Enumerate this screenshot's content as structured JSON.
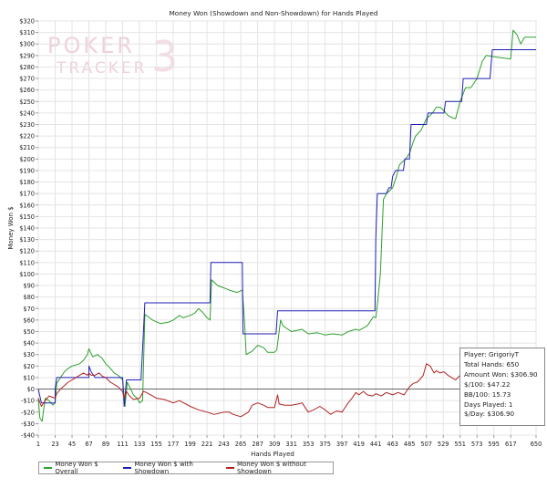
{
  "chart_data": {
    "type": "line",
    "title": "Money Won (Showdown and Non-Showdown) for Hands Played",
    "xlabel": "Hands Played",
    "ylabel": "Money Won $",
    "xlim": [
      1,
      650
    ],
    "ylim": [
      -40,
      320
    ],
    "x_ticks": [
      1,
      23,
      45,
      67,
      89,
      111,
      133,
      155,
      177,
      199,
      221,
      243,
      265,
      287,
      309,
      331,
      353,
      375,
      397,
      419,
      441,
      463,
      485,
      507,
      529,
      551,
      573,
      595,
      617,
      650
    ],
    "y_ticks": [
      -40,
      -30,
      -20,
      -10,
      0,
      10,
      20,
      30,
      40,
      50,
      60,
      70,
      80,
      90,
      100,
      110,
      120,
      130,
      140,
      150,
      160,
      170,
      180,
      190,
      200,
      210,
      220,
      230,
      240,
      250,
      260,
      270,
      280,
      290,
      300,
      310,
      320
    ],
    "grid": true,
    "legend_position": "bottom",
    "series": [
      {
        "name": "Money Won $ Overall",
        "color": "#2ca02c",
        "points": [
          [
            1,
            -8
          ],
          [
            3,
            -25
          ],
          [
            6,
            -28
          ],
          [
            10,
            -8
          ],
          [
            15,
            -10
          ],
          [
            20,
            -14
          ],
          [
            23,
            -12
          ],
          [
            25,
            5
          ],
          [
            30,
            10
          ],
          [
            35,
            15
          ],
          [
            40,
            18
          ],
          [
            45,
            20
          ],
          [
            55,
            22
          ],
          [
            60,
            25
          ],
          [
            65,
            30
          ],
          [
            67,
            35
          ],
          [
            72,
            28
          ],
          [
            78,
            30
          ],
          [
            84,
            27
          ],
          [
            89,
            22
          ],
          [
            95,
            18
          ],
          [
            100,
            14
          ],
          [
            105,
            12
          ],
          [
            108,
            10
          ],
          [
            111,
            8
          ],
          [
            114,
            -15
          ],
          [
            117,
            6
          ],
          [
            120,
            2
          ],
          [
            125,
            -5
          ],
          [
            130,
            -8
          ],
          [
            133,
            -12
          ],
          [
            137,
            -10
          ],
          [
            140,
            65
          ],
          [
            150,
            60
          ],
          [
            160,
            57
          ],
          [
            170,
            58
          ],
          [
            177,
            60
          ],
          [
            185,
            64
          ],
          [
            190,
            62
          ],
          [
            199,
            64
          ],
          [
            205,
            66
          ],
          [
            210,
            70
          ],
          [
            215,
            67
          ],
          [
            221,
            62
          ],
          [
            225,
            60
          ],
          [
            227,
            95
          ],
          [
            235,
            90
          ],
          [
            243,
            88
          ],
          [
            250,
            86
          ],
          [
            260,
            84
          ],
          [
            267,
            86
          ],
          [
            270,
            58
          ],
          [
            272,
            30
          ],
          [
            280,
            33
          ],
          [
            287,
            38
          ],
          [
            295,
            36
          ],
          [
            300,
            32
          ],
          [
            309,
            32
          ],
          [
            312,
            34
          ],
          [
            317,
            60
          ],
          [
            320,
            55
          ],
          [
            331,
            50
          ],
          [
            345,
            52
          ],
          [
            353,
            48
          ],
          [
            365,
            49
          ],
          [
            375,
            47
          ],
          [
            385,
            48
          ],
          [
            397,
            47
          ],
          [
            405,
            50
          ],
          [
            415,
            52
          ],
          [
            419,
            51
          ],
          [
            430,
            55
          ],
          [
            438,
            63
          ],
          [
            441,
            62
          ],
          [
            443,
            73
          ],
          [
            447,
            100
          ],
          [
            451,
            165
          ],
          [
            455,
            170
          ],
          [
            463,
            175
          ],
          [
            468,
            185
          ],
          [
            472,
            195
          ],
          [
            480,
            200
          ],
          [
            485,
            205
          ],
          [
            490,
            215
          ],
          [
            493,
            220
          ],
          [
            500,
            225
          ],
          [
            507,
            235
          ],
          [
            515,
            240
          ],
          [
            520,
            245
          ],
          [
            525,
            245
          ],
          [
            530,
            242
          ],
          [
            535,
            238
          ],
          [
            540,
            236
          ],
          [
            545,
            235
          ],
          [
            551,
            250
          ],
          [
            558,
            262
          ],
          [
            565,
            262
          ],
          [
            573,
            270
          ],
          [
            580,
            285
          ],
          [
            585,
            290
          ],
          [
            595,
            289
          ],
          [
            605,
            288
          ],
          [
            617,
            287
          ],
          [
            620,
            312
          ],
          [
            625,
            308
          ],
          [
            630,
            300
          ],
          [
            635,
            306
          ],
          [
            645,
            306
          ],
          [
            650,
            306
          ]
        ]
      },
      {
        "name": "Money Won $ with Showdown",
        "color": "#1f1fb4",
        "points": [
          [
            1,
            0
          ],
          [
            5,
            -12
          ],
          [
            10,
            -12
          ],
          [
            23,
            -12
          ],
          [
            23,
            0
          ],
          [
            25,
            10
          ],
          [
            67,
            10
          ],
          [
            67,
            20
          ],
          [
            70,
            15
          ],
          [
            75,
            10
          ],
          [
            111,
            10
          ],
          [
            113,
            -15
          ],
          [
            116,
            8
          ],
          [
            135,
            8
          ],
          [
            140,
            75
          ],
          [
            218,
            75
          ],
          [
            225,
            75
          ],
          [
            226,
            110
          ],
          [
            267,
            110
          ],
          [
            268,
            48
          ],
          [
            307,
            48
          ],
          [
            311,
            48
          ],
          [
            313,
            68
          ],
          [
            438,
            68
          ],
          [
            440,
            68
          ],
          [
            441,
            130
          ],
          [
            443,
            170
          ],
          [
            455,
            170
          ],
          [
            458,
            175
          ],
          [
            461,
            175
          ],
          [
            463,
            185
          ],
          [
            467,
            190
          ],
          [
            477,
            190
          ],
          [
            479,
            200
          ],
          [
            485,
            200
          ],
          [
            487,
            230
          ],
          [
            507,
            230
          ],
          [
            509,
            240
          ],
          [
            530,
            240
          ],
          [
            532,
            250
          ],
          [
            551,
            250
          ],
          [
            553,
            250
          ],
          [
            555,
            270
          ],
          [
            575,
            270
          ],
          [
            577,
            270
          ],
          [
            590,
            270
          ],
          [
            593,
            295
          ],
          [
            650,
            295
          ]
        ]
      },
      {
        "name": "Money Won $ without Showdown",
        "color": "#b22222",
        "points": [
          [
            1,
            -8
          ],
          [
            5,
            -15
          ],
          [
            10,
            -10
          ],
          [
            15,
            -6
          ],
          [
            23,
            -8
          ],
          [
            25,
            -4
          ],
          [
            30,
            0
          ],
          [
            35,
            3
          ],
          [
            40,
            6
          ],
          [
            45,
            8
          ],
          [
            50,
            10
          ],
          [
            55,
            12
          ],
          [
            60,
            14
          ],
          [
            65,
            12
          ],
          [
            67,
            14
          ],
          [
            70,
            12
          ],
          [
            75,
            12
          ],
          [
            80,
            14
          ],
          [
            85,
            11
          ],
          [
            89,
            10
          ],
          [
            95,
            6
          ],
          [
            100,
            4
          ],
          [
            105,
            2
          ],
          [
            111,
            -2
          ],
          [
            113,
            -8
          ],
          [
            116,
            -2
          ],
          [
            120,
            -6
          ],
          [
            125,
            -9
          ],
          [
            133,
            -8
          ],
          [
            138,
            -2
          ],
          [
            142,
            -3
          ],
          [
            150,
            -6
          ],
          [
            155,
            -8
          ],
          [
            165,
            -9
          ],
          [
            177,
            -12
          ],
          [
            185,
            -10
          ],
          [
            199,
            -15
          ],
          [
            210,
            -18
          ],
          [
            221,
            -20
          ],
          [
            230,
            -22
          ],
          [
            243,
            -20
          ],
          [
            250,
            -20
          ],
          [
            255,
            -22
          ],
          [
            265,
            -24
          ],
          [
            270,
            -22
          ],
          [
            275,
            -20
          ],
          [
            280,
            -14
          ],
          [
            287,
            -12
          ],
          [
            295,
            -14
          ],
          [
            300,
            -16
          ],
          [
            309,
            -16
          ],
          [
            313,
            -5
          ],
          [
            315,
            -13
          ],
          [
            322,
            -14
          ],
          [
            331,
            -14
          ],
          [
            340,
            -13
          ],
          [
            345,
            -12
          ],
          [
            353,
            -20
          ],
          [
            360,
            -18
          ],
          [
            368,
            -15
          ],
          [
            375,
            -18
          ],
          [
            382,
            -22
          ],
          [
            390,
            -19
          ],
          [
            397,
            -20
          ],
          [
            400,
            -17
          ],
          [
            405,
            -12
          ],
          [
            410,
            -8
          ],
          [
            415,
            -3
          ],
          [
            419,
            -5
          ],
          [
            425,
            -2
          ],
          [
            430,
            -5
          ],
          [
            437,
            -6
          ],
          [
            441,
            -4
          ],
          [
            448,
            -6
          ],
          [
            455,
            -3
          ],
          [
            463,
            -5
          ],
          [
            470,
            -3
          ],
          [
            478,
            -5
          ],
          [
            485,
            2
          ],
          [
            490,
            5
          ],
          [
            495,
            6
          ],
          [
            498,
            8
          ],
          [
            503,
            12
          ],
          [
            507,
            22
          ],
          [
            512,
            20
          ],
          [
            517,
            14
          ],
          [
            520,
            16
          ],
          [
            525,
            14
          ],
          [
            530,
            15
          ],
          [
            535,
            12
          ],
          [
            540,
            10
          ],
          [
            545,
            8
          ],
          [
            551,
            12
          ],
          [
            556,
            14
          ],
          [
            560,
            12
          ],
          [
            565,
            10
          ],
          [
            570,
            10
          ],
          [
            573,
            8
          ],
          [
            578,
            11
          ],
          [
            580,
            16
          ],
          [
            585,
            13
          ],
          [
            590,
            14
          ],
          [
            595,
            13
          ],
          [
            600,
            14
          ],
          [
            605,
            13
          ],
          [
            610,
            12
          ],
          [
            617,
            10
          ],
          [
            620,
            12
          ],
          [
            625,
            11
          ],
          [
            630,
            12
          ],
          [
            640,
            12
          ],
          [
            650,
            14
          ]
        ]
      }
    ]
  },
  "watermark": {
    "line1": "POKER",
    "line2": "TRACKER",
    "numeral": "3"
  },
  "stats": {
    "player": "Player: GrigoriyT",
    "total_hands": "Total Hands: 650",
    "amount_won": "Amount Won: $306.90",
    "per_100": "$/100: $47.22",
    "bb_100": "BB/100: 15.73",
    "days_played": "Days Played: 1",
    "per_day": "$/Day: $306.90"
  },
  "colors": {
    "overall": "#2ca02c",
    "showdown": "#1f1fb4",
    "non_showdown": "#b22222",
    "grid": "#e4e4e4",
    "zero_line": "#666666",
    "watermark": "#efd0d8"
  }
}
